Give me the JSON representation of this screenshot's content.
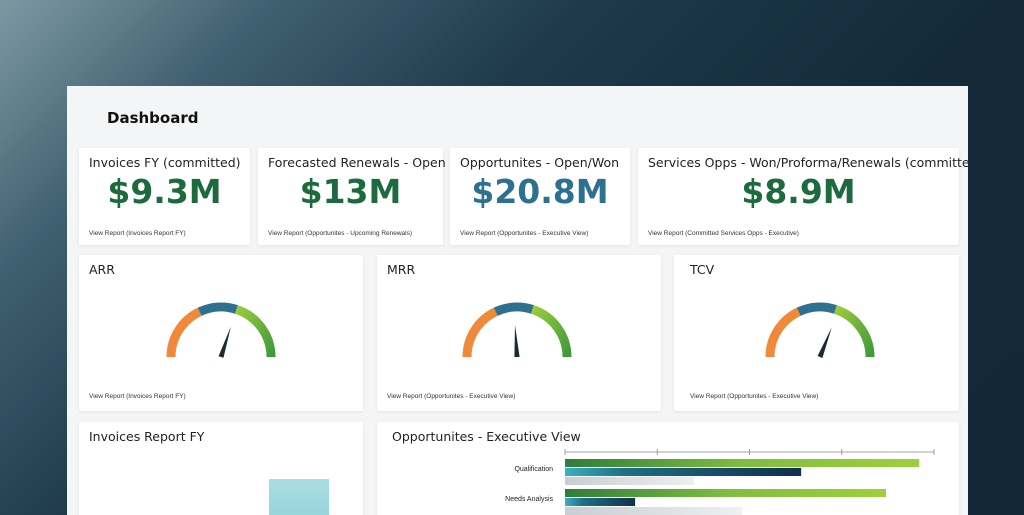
{
  "page": {
    "title": "Dashboard"
  },
  "colors": {
    "green_dark": "#1e6a3f",
    "teal": "#2d7090",
    "orange": "#f08a3a",
    "lime": "#9acb3c"
  },
  "kpis": [
    {
      "title": "Invoices FY (committed)",
      "value": "$9.3M",
      "link": "View Report (Invoices Report FY)"
    },
    {
      "title": "Forecasted Renewals - Open",
      "value": "$13M",
      "link": "View Report (Opportunites - Upcoming Renewals)"
    },
    {
      "title": "Opportunites - Open/Won",
      "value": "$20.8M",
      "link": "View Report (Opportunites - Executive View)"
    },
    {
      "title": "Services Opps - Won/Proforma/Renewals (committed)",
      "value": "$8.9M",
      "link": "View Report (Committed Services Opps - Executive)"
    }
  ],
  "gauges": [
    {
      "title": "ARR",
      "link": "View Report (Invoices Report FY)",
      "needle_fraction": 0.6
    },
    {
      "title": "MRR",
      "link": "View Report (Opportunites - Executive View)",
      "needle_fraction": 0.48
    },
    {
      "title": "TCV",
      "link": "View Report (Opportunites - Executive View)",
      "needle_fraction": 0.62
    }
  ],
  "invoices_chart": {
    "title": "Invoices Report FY"
  },
  "opps_chart": {
    "title": "Opportunites - Executive View",
    "stages": [
      {
        "label": "Qualification",
        "values": [
          0.96,
          0.64,
          0.35
        ]
      },
      {
        "label": "Needs Analysis",
        "values": [
          0.87,
          0.19,
          0.48
        ]
      }
    ]
  }
}
